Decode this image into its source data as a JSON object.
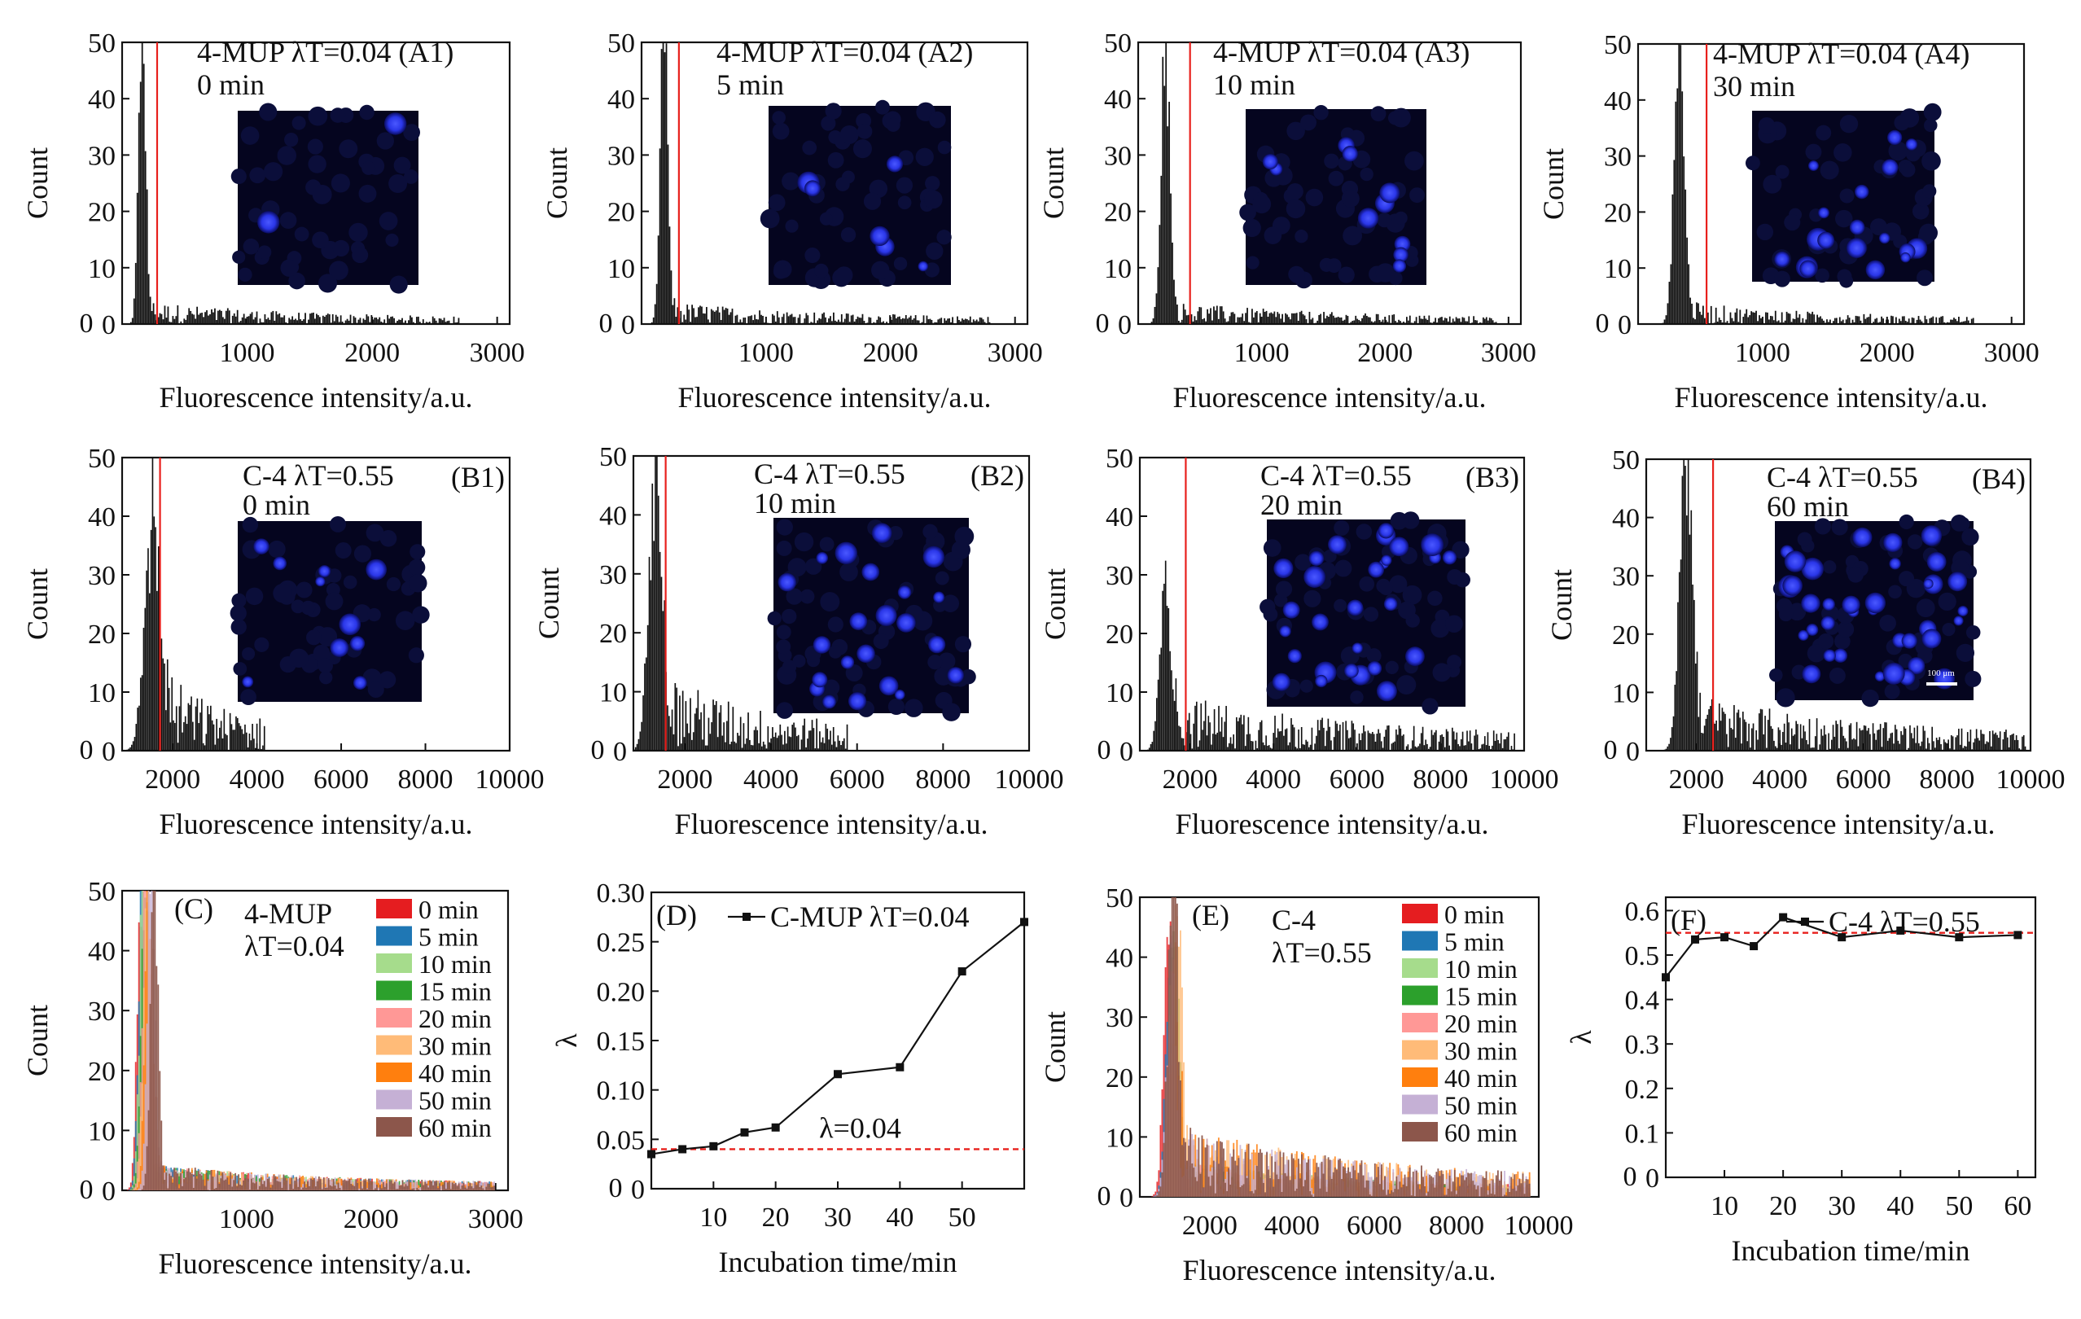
{
  "colors": {
    "accent": "#e8201c",
    "bar": "#111111",
    "inset_bg": "#05051f",
    "inset_dot": "#2b38ff",
    "series": [
      "#e51d20",
      "#1f77b4",
      "#a6dc8c",
      "#2ca02c",
      "#ff9896",
      "#ffbb78",
      "#ff7f0e",
      "#c5b0d5",
      "#8c564b"
    ]
  },
  "chart_data": [
    {
      "id": "A1",
      "type": "histogram",
      "title": "4-MUP λT=0.04 (A1)",
      "subtitle": "0 min",
      "xlabel": "Fluorescence intensity/a.u.",
      "ylabel": "Count",
      "xlim": [
        0,
        3100
      ],
      "ylim": [
        0,
        50
      ],
      "xticks": [
        1000,
        2000,
        3000
      ],
      "yticks": [
        0,
        10,
        20,
        30,
        40,
        50
      ],
      "peak_center": 160,
      "peak_width": 28,
      "peak_height": 50,
      "tail_level": 2,
      "tail_end": 2700,
      "threshold": 280,
      "inset_spots": 2
    },
    {
      "id": "A2",
      "type": "histogram",
      "title": "4-MUP λT=0.04 (A2)",
      "subtitle": "5 min",
      "xlabel": "Fluorescence intensity/a.u.",
      "ylabel": "Count",
      "xlim": [
        0,
        3100
      ],
      "ylim": [
        0,
        50
      ],
      "xticks": [
        1000,
        2000,
        3000
      ],
      "yticks": [
        0,
        10,
        20,
        30,
        40,
        50
      ],
      "peak_center": 180,
      "peak_width": 30,
      "peak_height": 50,
      "tail_level": 2,
      "tail_end": 2800,
      "threshold": 300,
      "inset_spots": 6
    },
    {
      "id": "A3",
      "type": "histogram",
      "title": "4-MUP λT=0.04 (A3)",
      "subtitle": "10 min",
      "xlabel": "Fluorescence intensity/a.u.",
      "ylabel": "Count",
      "xlim": [
        0,
        3100
      ],
      "ylim": [
        0,
        50
      ],
      "xticks": [
        1000,
        2000,
        3000
      ],
      "yticks": [
        0,
        10,
        20,
        30,
        40,
        50
      ],
      "peak_center": 220,
      "peak_width": 35,
      "peak_height": 50,
      "tail_level": 2,
      "tail_end": 2900,
      "threshold": 420,
      "inset_spots": 10
    },
    {
      "id": "A4",
      "type": "histogram",
      "title": "4-MUP λT=0.04 (A4)",
      "subtitle": "30 min",
      "xlabel": "Fluorescence intensity/a.u.",
      "ylabel": "Count",
      "xlim": [
        0,
        3100
      ],
      "ylim": [
        0,
        50
      ],
      "xticks": [
        1000,
        2000,
        3000
      ],
      "yticks": [
        0,
        10,
        20,
        30,
        40,
        50
      ],
      "peak_center": 330,
      "peak_width": 40,
      "peak_height": 50,
      "tail_level": 2,
      "tail_end": 2700,
      "threshold": 550,
      "inset_spots": 18
    },
    {
      "id": "B1",
      "type": "histogram",
      "title": "C-4 λT=0.55",
      "tag": "(B1)",
      "subtitle": "0 min",
      "xlabel": "Fluorescence intensity/a.u.",
      "ylabel": "Count",
      "xlim": [
        800,
        10000
      ],
      "ylim": [
        0,
        50
      ],
      "xticks": [
        2000,
        4000,
        6000,
        8000,
        10000
      ],
      "yticks": [
        0,
        10,
        20,
        30,
        40,
        50
      ],
      "peak_center": 1500,
      "peak_width": 180,
      "peak_height": 33,
      "tail_level": 8,
      "tail_end": 4200,
      "threshold": 1700,
      "inset_spots": 10
    },
    {
      "id": "B2",
      "type": "histogram",
      "title": "C-4 λT=0.55",
      "tag": "(B2)",
      "subtitle": "10 min",
      "xlabel": "Fluorescence intensity/a.u.",
      "ylabel": "Count",
      "xlim": [
        800,
        10000
      ],
      "ylim": [
        0,
        50
      ],
      "xticks": [
        2000,
        4000,
        6000,
        8000,
        10000
      ],
      "yticks": [
        0,
        10,
        20,
        30,
        40,
        50
      ],
      "peak_center": 1300,
      "peak_width": 150,
      "peak_height": 43,
      "tail_level": 7,
      "tail_end": 5800,
      "threshold": 1550,
      "inset_spots": 22
    },
    {
      "id": "B3",
      "type": "histogram",
      "title": "C-4 λT=0.55",
      "tag": "(B3)",
      "subtitle": "20 min",
      "xlabel": "Fluorescence intensity/a.u.",
      "ylabel": "Count",
      "xlim": [
        800,
        10000
      ],
      "ylim": [
        0,
        50
      ],
      "xticks": [
        2000,
        4000,
        6000,
        8000,
        10000
      ],
      "yticks": [
        0,
        10,
        20,
        30,
        40,
        50
      ],
      "peak_center": 1400,
      "peak_width": 130,
      "peak_height": 26,
      "tail_level": 5,
      "tail_end": 9800,
      "threshold": 1900,
      "inset_spots": 28
    },
    {
      "id": "B4",
      "type": "histogram",
      "title": "C-4 λT=0.55",
      "tag": "(B4)",
      "subtitle": "60 min",
      "xlabel": "Fluorescence intensity/a.u.",
      "ylabel": "Count",
      "xlim": [
        800,
        10000
      ],
      "ylim": [
        0,
        50
      ],
      "xticks": [
        2000,
        4000,
        6000,
        8000,
        10000
      ],
      "yticks": [
        0,
        10,
        20,
        30,
        40,
        50
      ],
      "peak_center": 1750,
      "peak_width": 150,
      "peak_height": 48,
      "tail_level": 5,
      "tail_end": 9900,
      "threshold": 2400,
      "inset_spots": 36,
      "scale_bar": "100 μm"
    },
    {
      "id": "C",
      "type": "overlaid histogram",
      "tag": "(C)",
      "label": "4-MUP",
      "label2": "λT=0.04",
      "xlabel": "Fluorescence intensity/a.u.",
      "ylabel": "Count",
      "xlim": [
        0,
        3100
      ],
      "ylim": [
        0,
        50
      ],
      "xticks": [
        1000,
        2000,
        3000
      ],
      "yticks": [
        0,
        10,
        20,
        30,
        40,
        50
      ],
      "legend": [
        "0 min",
        "5 min",
        "10 min",
        "15 min",
        "20 min",
        "30 min",
        "40 min",
        "50 min",
        "60 min"
      ],
      "peak_centers": [
        150,
        160,
        170,
        180,
        190,
        200,
        215,
        230,
        260
      ]
    },
    {
      "id": "D",
      "type": "line",
      "tag": "(D)",
      "series_name": "C-MUP λT=0.04",
      "xlabel": "Incubation time/min",
      "ylabel": "λ",
      "x": [
        0,
        5,
        10,
        15,
        20,
        30,
        40,
        50,
        60
      ],
      "y": [
        0.035,
        0.04,
        0.043,
        0.057,
        0.062,
        0.116,
        0.123,
        0.22,
        0.27
      ],
      "xlim": [
        0,
        60
      ],
      "ylim": [
        0,
        0.3
      ],
      "xticks": [
        10,
        20,
        30,
        40,
        50
      ],
      "yticks": [
        0,
        0.05,
        0.1,
        0.15,
        0.2,
        0.25,
        0.3
      ],
      "ytick_labels": [
        "0",
        "0.05",
        "0.10",
        "0.15",
        "0.20",
        "0.25",
        "0.30"
      ],
      "reference": 0.04,
      "reference_label": "λ=0.04"
    },
    {
      "id": "E",
      "type": "overlaid histogram",
      "tag": "(E)",
      "label": "C-4",
      "label2": "λT=0.55",
      "xlabel": "Fluorescence intensity/a.u.",
      "ylabel": "Count",
      "xlim": [
        300,
        10000
      ],
      "ylim": [
        0,
        50
      ],
      "xticks": [
        2000,
        4000,
        6000,
        8000,
        10000
      ],
      "yticks": [
        0,
        10,
        20,
        30,
        40,
        50
      ],
      "legend": [
        "0 min",
        "5 min",
        "10 min",
        "15 min",
        "20 min",
        "30 min",
        "40 min",
        "50 min",
        "60 min"
      ],
      "peak_centers": [
        1000,
        1050,
        1100,
        1150,
        1100,
        1200,
        1150,
        1050,
        1100
      ]
    },
    {
      "id": "F",
      "type": "line",
      "tag": "(F)",
      "series_name": "C-4 λT=0.55",
      "xlabel": "Incubation time/min",
      "ylabel": "λ",
      "x": [
        0,
        5,
        10,
        15,
        20,
        30,
        40,
        50,
        60
      ],
      "y": [
        0.45,
        0.535,
        0.54,
        0.52,
        0.585,
        0.54,
        0.555,
        0.54,
        0.545
      ],
      "xlim": [
        0,
        63
      ],
      "ylim": [
        0,
        0.63
      ],
      "xticks": [
        10,
        20,
        30,
        40,
        50,
        60
      ],
      "yticks": [
        0,
        0.1,
        0.2,
        0.3,
        0.4,
        0.5,
        0.6
      ],
      "ytick_labels": [
        "0",
        "0.1",
        "0.2",
        "0.3",
        "0.4",
        "0.5",
        "0.6"
      ],
      "reference": 0.55
    }
  ]
}
